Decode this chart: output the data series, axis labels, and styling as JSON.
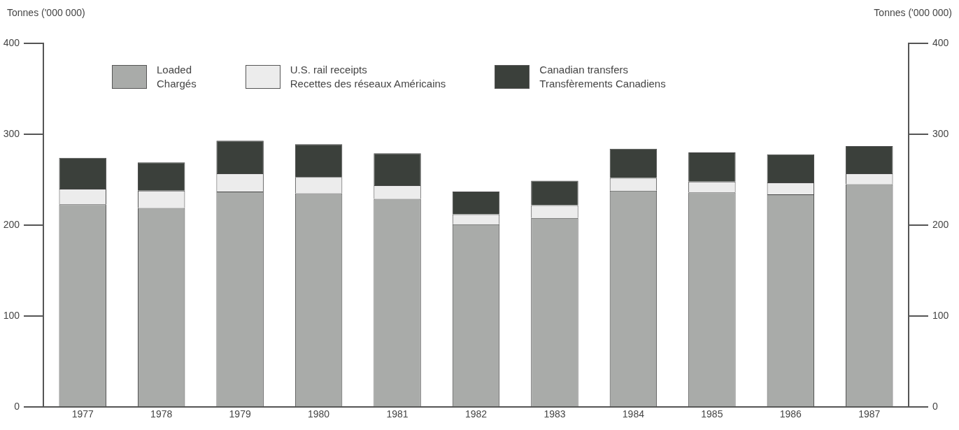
{
  "chart_data": {
    "type": "bar",
    "stacked": true,
    "ylabel": "Tonnes ('000 000)",
    "y2label": "Tonnes ('000 000)",
    "categories": [
      "1977",
      "1978",
      "1979",
      "1980",
      "1981",
      "1982",
      "1983",
      "1984",
      "1985",
      "1986",
      "1987"
    ],
    "series": [
      {
        "name": "Loaded\nChargés",
        "color": "#a9aba9",
        "values": [
          223,
          219,
          237,
          235,
          229,
          201,
          208,
          238,
          236,
          234,
          245
        ]
      },
      {
        "name": "U.S. rail receipts\nRecettes des réseaux Américains",
        "color": "#ececec",
        "values": [
          17,
          19,
          20,
          18,
          15,
          11,
          14,
          14,
          12,
          13,
          12
        ]
      },
      {
        "name": "Canadian transfers\nTransfèrements Canadiens",
        "color": "#3b403b",
        "values": [
          34,
          31,
          36,
          36,
          35,
          25,
          27,
          32,
          32,
          31,
          30
        ]
      }
    ],
    "ylim": [
      0,
      400
    ],
    "yticks": [
      0,
      100,
      200,
      300,
      400
    ],
    "y2lim": [
      0,
      400
    ],
    "y2ticks": [
      0,
      100,
      200,
      300,
      400
    ],
    "grid": false,
    "legend": "top"
  }
}
